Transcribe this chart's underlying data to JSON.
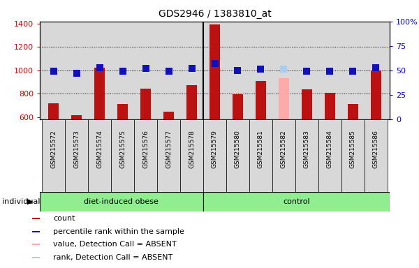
{
  "title": "GDS2946 / 1383810_at",
  "samples": [
    "GSM215572",
    "GSM215573",
    "GSM215574",
    "GSM215575",
    "GSM215576",
    "GSM215577",
    "GSM215578",
    "GSM215579",
    "GSM215580",
    "GSM215581",
    "GSM215582",
    "GSM215583",
    "GSM215584",
    "GSM215585",
    "GSM215586"
  ],
  "count_values": [
    720,
    615,
    1025,
    710,
    845,
    648,
    870,
    1395,
    795,
    910,
    930,
    835,
    810,
    710,
    1000
  ],
  "absent_count": [
    false,
    false,
    false,
    false,
    false,
    false,
    false,
    false,
    false,
    false,
    true,
    false,
    false,
    false,
    false
  ],
  "percentile_values": [
    49,
    47,
    53,
    49,
    52,
    49,
    52,
    57,
    50,
    51,
    51,
    49,
    49,
    49,
    53
  ],
  "absent_rank": [
    false,
    false,
    false,
    false,
    false,
    false,
    false,
    false,
    false,
    false,
    true,
    false,
    false,
    false,
    false
  ],
  "group_labels": [
    "diet-induced obese",
    "control"
  ],
  "group_split": 7,
  "bar_color_normal": "#BB1111",
  "bar_color_absent": "#FFAAAA",
  "rank_color_normal": "#1111BB",
  "rank_color_absent": "#AACCEE",
  "ylim_left": [
    580,
    1420
  ],
  "ylim_right": [
    0,
    100
  ],
  "yticks_left": [
    600,
    800,
    1000,
    1200,
    1400
  ],
  "yticks_right": [
    0,
    25,
    50,
    75,
    100
  ],
  "grid_values": [
    800,
    1000,
    1200
  ],
  "background_color": "#ffffff",
  "plot_bg_color": "#d8d8d8",
  "cell_bg_color": "#d8d8d8",
  "bar_width": 0.45,
  "rank_marker_size": 50
}
